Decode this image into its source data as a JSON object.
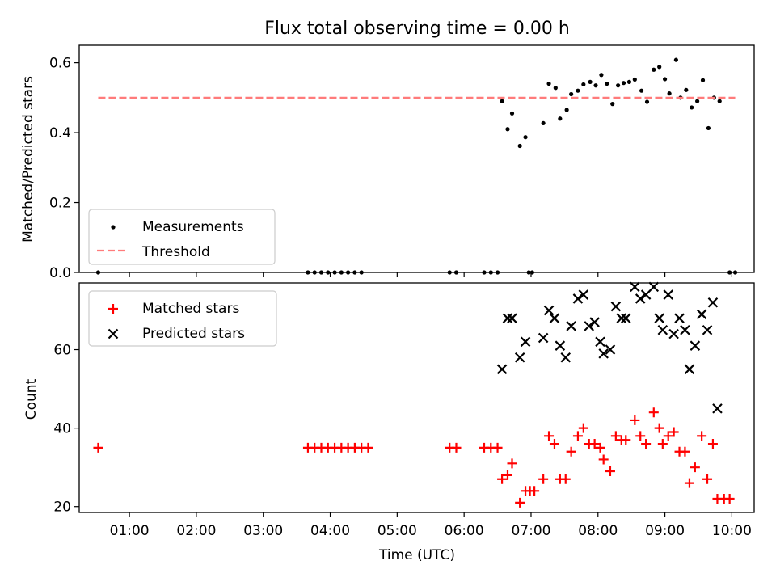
{
  "chart_data": [
    {
      "type": "scatter",
      "title": "Flux total observing time = 0.00 h",
      "xlabel": "",
      "ylabel": "Matched/Predicted stars",
      "xlim": [
        "00:15",
        "10:20"
      ],
      "ylim": [
        0,
        0.65
      ],
      "yticks": [
        "0.0",
        "0.2",
        "0.4",
        "0.6"
      ],
      "legend_position": "lower-left",
      "series": [
        {
          "name": "Measurements",
          "marker": "dot",
          "color": "#000000",
          "points": [
            [
              "00:32",
              0.0
            ],
            [
              "03:40",
              0.0
            ],
            [
              "03:46",
              0.0
            ],
            [
              "03:52",
              0.0
            ],
            [
              "03:58",
              0.0
            ],
            [
              "04:04",
              0.0
            ],
            [
              "04:10",
              0.0
            ],
            [
              "04:16",
              0.0
            ],
            [
              "04:22",
              0.0
            ],
            [
              "04:28",
              0.0
            ],
            [
              "05:47",
              0.0
            ],
            [
              "05:53",
              0.0
            ],
            [
              "06:18",
              0.0
            ],
            [
              "06:24",
              0.0
            ],
            [
              "06:30",
              0.0
            ],
            [
              "06:34",
              0.49
            ],
            [
              "06:39",
              0.41
            ],
            [
              "06:43",
              0.455
            ],
            [
              "06:50",
              0.362
            ],
            [
              "06:55",
              0.387
            ],
            [
              "06:58",
              0.0
            ],
            [
              "07:01",
              0.0
            ],
            [
              "07:11",
              0.427
            ],
            [
              "07:16",
              0.54
            ],
            [
              "07:22",
              0.528
            ],
            [
              "07:26",
              0.44
            ],
            [
              "07:32",
              0.465
            ],
            [
              "07:36",
              0.51
            ],
            [
              "07:42",
              0.52
            ],
            [
              "07:47",
              0.538
            ],
            [
              "07:53",
              0.545
            ],
            [
              "07:58",
              0.535
            ],
            [
              "08:03",
              0.565
            ],
            [
              "08:08",
              0.54
            ],
            [
              "08:13",
              0.482
            ],
            [
              "08:18",
              0.535
            ],
            [
              "08:23",
              0.542
            ],
            [
              "08:28",
              0.545
            ],
            [
              "08:33",
              0.552
            ],
            [
              "08:39",
              0.52
            ],
            [
              "08:44",
              0.488
            ],
            [
              "08:50",
              0.58
            ],
            [
              "08:55",
              0.588
            ],
            [
              "09:00",
              0.553
            ],
            [
              "09:04",
              0.512
            ],
            [
              "09:10",
              0.608
            ],
            [
              "09:14",
              0.5
            ],
            [
              "09:19",
              0.522
            ],
            [
              "09:24",
              0.472
            ],
            [
              "09:29",
              0.49
            ],
            [
              "09:34",
              0.55
            ],
            [
              "09:39",
              0.413
            ],
            [
              "09:44",
              0.5
            ],
            [
              "09:49",
              0.49
            ],
            [
              "09:58",
              0.0
            ],
            [
              "10:03",
              0.0
            ]
          ]
        },
        {
          "name": "Threshold",
          "line": "dashed",
          "color": "#ff7b7b",
          "points": [
            [
              "00:32",
              0.5
            ],
            [
              "10:03",
              0.5
            ]
          ]
        }
      ]
    },
    {
      "type": "scatter",
      "title": "",
      "xlabel": "Time (UTC)",
      "ylabel": "Count",
      "xlim": [
        "00:15",
        "10:20"
      ],
      "ylim": [
        18.5,
        77
      ],
      "yticks": [
        "20",
        "40",
        "60"
      ],
      "xticks": [
        "01:00",
        "02:00",
        "03:00",
        "04:00",
        "05:00",
        "06:00",
        "07:00",
        "08:00",
        "09:00",
        "10:00"
      ],
      "legend_position": "upper-left",
      "series": [
        {
          "name": "Matched stars",
          "marker": "plus",
          "color": "#ff0000",
          "points": [
            [
              "00:32",
              35
            ],
            [
              "03:40",
              35
            ],
            [
              "03:46",
              35
            ],
            [
              "03:52",
              35
            ],
            [
              "03:58",
              35
            ],
            [
              "04:04",
              35
            ],
            [
              "04:10",
              35
            ],
            [
              "04:16",
              35
            ],
            [
              "04:22",
              35
            ],
            [
              "04:28",
              35
            ],
            [
              "04:34",
              35
            ],
            [
              "05:47",
              35
            ],
            [
              "05:53",
              35
            ],
            [
              "06:18",
              35
            ],
            [
              "06:24",
              35
            ],
            [
              "06:30",
              35
            ],
            [
              "06:34",
              27
            ],
            [
              "06:39",
              28
            ],
            [
              "06:43",
              31
            ],
            [
              "06:50",
              21
            ],
            [
              "06:55",
              24
            ],
            [
              "06:59",
              24
            ],
            [
              "07:03",
              24
            ],
            [
              "07:11",
              27
            ],
            [
              "07:16",
              38
            ],
            [
              "07:21",
              36
            ],
            [
              "07:26",
              27
            ],
            [
              "07:31",
              27
            ],
            [
              "07:36",
              34
            ],
            [
              "07:42",
              38
            ],
            [
              "07:47",
              40
            ],
            [
              "07:52",
              36
            ],
            [
              "07:57",
              36
            ],
            [
              "08:02",
              35
            ],
            [
              "08:05",
              32
            ],
            [
              "08:11",
              29
            ],
            [
              "08:16",
              38
            ],
            [
              "08:21",
              37
            ],
            [
              "08:25",
              37
            ],
            [
              "08:33",
              42
            ],
            [
              "08:38",
              38
            ],
            [
              "08:43",
              36
            ],
            [
              "08:50",
              44
            ],
            [
              "08:55",
              40
            ],
            [
              "08:58",
              36
            ],
            [
              "09:03",
              38
            ],
            [
              "09:08",
              39
            ],
            [
              "09:13",
              34
            ],
            [
              "09:18",
              34
            ],
            [
              "09:22",
              26
            ],
            [
              "09:27",
              30
            ],
            [
              "09:33",
              38
            ],
            [
              "09:38",
              27
            ],
            [
              "09:43",
              36
            ],
            [
              "09:47",
              22
            ],
            [
              "09:53",
              22
            ],
            [
              "09:58",
              22
            ]
          ]
        },
        {
          "name": "Predicted stars",
          "marker": "x",
          "color": "#000000",
          "points": [
            [
              "06:34",
              55
            ],
            [
              "06:39",
              68
            ],
            [
              "06:43",
              68
            ],
            [
              "06:50",
              58
            ],
            [
              "06:55",
              62
            ],
            [
              "07:11",
              63
            ],
            [
              "07:16",
              70
            ],
            [
              "07:21",
              68
            ],
            [
              "07:26",
              61
            ],
            [
              "07:31",
              58
            ],
            [
              "07:36",
              66
            ],
            [
              "07:42",
              73
            ],
            [
              "07:47",
              74
            ],
            [
              "07:52",
              66
            ],
            [
              "07:57",
              67
            ],
            [
              "08:02",
              62
            ],
            [
              "08:05",
              59
            ],
            [
              "08:11",
              60
            ],
            [
              "08:16",
              71
            ],
            [
              "08:21",
              68
            ],
            [
              "08:25",
              68
            ],
            [
              "08:33",
              76
            ],
            [
              "08:38",
              73
            ],
            [
              "08:43",
              74
            ],
            [
              "08:50",
              76
            ],
            [
              "08:55",
              68
            ],
            [
              "08:58",
              65
            ],
            [
              "09:03",
              74
            ],
            [
              "09:08",
              64
            ],
            [
              "09:13",
              68
            ],
            [
              "09:18",
              65
            ],
            [
              "09:22",
              55
            ],
            [
              "09:27",
              61
            ],
            [
              "09:33",
              69
            ],
            [
              "09:38",
              65
            ],
            [
              "09:43",
              72
            ],
            [
              "09:47",
              45
            ]
          ]
        }
      ]
    }
  ]
}
